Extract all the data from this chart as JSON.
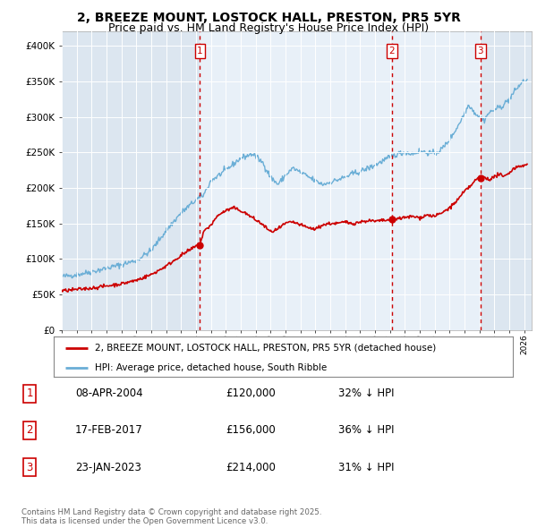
{
  "title": "2, BREEZE MOUNT, LOSTOCK HALL, PRESTON, PR5 5YR",
  "subtitle": "Price paid vs. HM Land Registry's House Price Index (HPI)",
  "title_fontsize": 10,
  "subtitle_fontsize": 9,
  "background_color": "#ffffff",
  "plot_bg_color": "#dce6f0",
  "plot_bg_shade": "#e8f0f8",
  "grid_color": "#ffffff",
  "hpi_color": "#6aaed6",
  "price_color": "#cc0000",
  "vline_color": "#cc0000",
  "vline_style": ":",
  "ylim": [
    0,
    420000
  ],
  "yticks": [
    0,
    50000,
    100000,
    150000,
    200000,
    250000,
    300000,
    350000,
    400000
  ],
  "ytick_labels": [
    "£0",
    "£50K",
    "£100K",
    "£150K",
    "£200K",
    "£250K",
    "£300K",
    "£350K",
    "£400K"
  ],
  "transaction_markers": [
    {
      "date": 2004.27,
      "price": 120000,
      "label": "1"
    },
    {
      "date": 2017.12,
      "price": 156000,
      "label": "2"
    },
    {
      "date": 2023.07,
      "price": 214000,
      "label": "3"
    }
  ],
  "legend_entries": [
    "2, BREEZE MOUNT, LOSTOCK HALL, PRESTON, PR5 5YR (detached house)",
    "HPI: Average price, detached house, South Ribble"
  ],
  "table_rows": [
    {
      "num": "1",
      "date": "08-APR-2004",
      "price": "£120,000",
      "note": "32% ↓ HPI"
    },
    {
      "num": "2",
      "date": "17-FEB-2017",
      "price": "£156,000",
      "note": "36% ↓ HPI"
    },
    {
      "num": "3",
      "date": "23-JAN-2023",
      "price": "£214,000",
      "note": "31% ↓ HPI"
    }
  ],
  "footer": "Contains HM Land Registry data © Crown copyright and database right 2025.\nThis data is licensed under the Open Government Licence v3.0.",
  "xlim_start": 1995.0,
  "xlim_end": 2026.5
}
